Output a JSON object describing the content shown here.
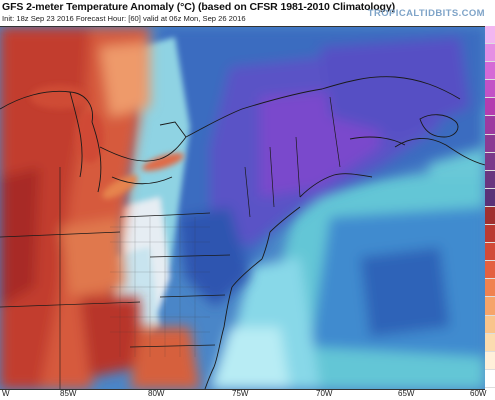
{
  "header": {
    "title": "GFS 2-meter Temperature Anomaly (°C) (based on CFSR 1981-2010 Climatology)",
    "subtitle": "Init: 18z Sep 23 2016   Forecast Hour: [60]   valid at 06z Mon, Sep 26 2016",
    "brand": "TROPICALTIDBITS.COM"
  },
  "map": {
    "x_axis_ticks": [
      "W",
      "85W",
      "80W",
      "75W",
      "70W",
      "65W",
      "60W"
    ],
    "colors": {
      "warm_dark": "#b8322a",
      "warm": "#d8583a",
      "warm_light": "#ee9a6a",
      "neutral": "#f3efe6",
      "cool_light": "#8fd3e3",
      "cool": "#3a78c2",
      "cool_dark": "#2a4fa8",
      "cold": "#6c48c9",
      "ocean_teal": "#5cc3d4"
    }
  },
  "colorbar": {
    "colors": [
      "#f2b6f0",
      "#e58fe3",
      "#d56ad6",
      "#c352c6",
      "#b43caf",
      "#9d3aa0",
      "#8b3a93",
      "#7b3a8a",
      "#6a3680",
      "#5a3278",
      "#a03030",
      "#ba3a32",
      "#d14a38",
      "#e46040",
      "#f08250",
      "#f6a46a",
      "#f9c48c",
      "#fbdcb0",
      "#fff0da",
      "#ffffff"
    ]
  }
}
